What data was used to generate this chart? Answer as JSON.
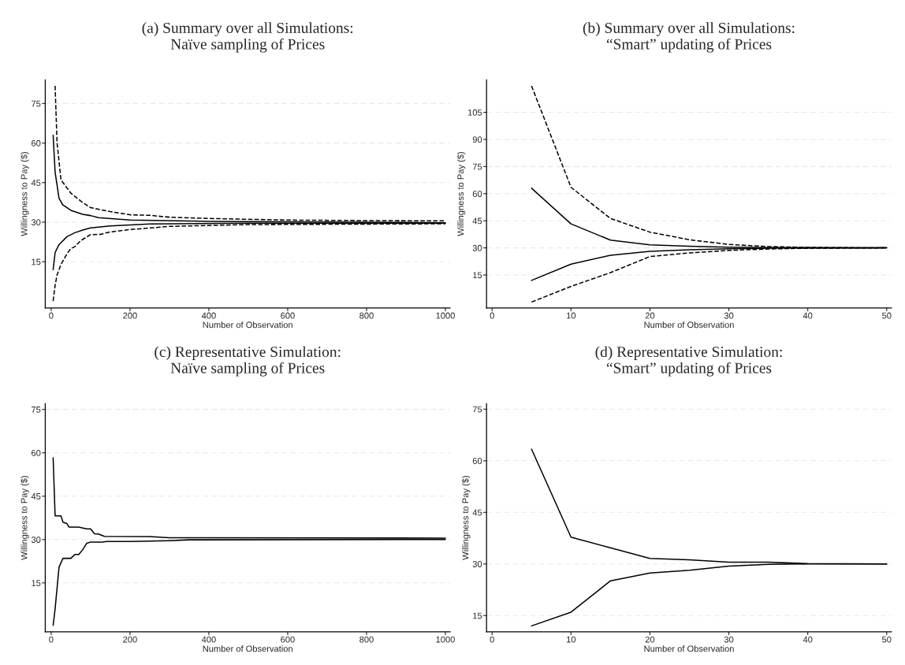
{
  "chart_data": [
    {
      "type": "line",
      "title": "(a) Summary over all Simulations:\nNaïve sampling of Prices",
      "xlabel": "Number of Observation",
      "ylabel": "Willingness to Pay ($)",
      "xlim": [
        -15,
        1012
      ],
      "xticks": [
        0,
        200,
        400,
        600,
        800,
        1000
      ],
      "ylim": [
        -2.5,
        84
      ],
      "yticks": [
        15,
        30,
        45,
        60,
        75
      ],
      "grid": "y",
      "series": [
        {
          "color": "#000000",
          "line_style": "dashed",
          "x": [
            10,
            15,
            25,
            50,
            75,
            100,
            150,
            200,
            250,
            300,
            400,
            600,
            800,
            1000
          ],
          "values": [
            81.7,
            60,
            46,
            41,
            38,
            35.5,
            34,
            32.8,
            32.6,
            31.9,
            31.4,
            30.8,
            30.6,
            30.5
          ]
        },
        {
          "color": "#000000",
          "line_style": "solid",
          "x": [
            5,
            10,
            20,
            30,
            50,
            80,
            100,
            120,
            200,
            400,
            1000
          ],
          "values": [
            63,
            49,
            39,
            36.5,
            34.5,
            33,
            32.5,
            31.7,
            30.8,
            30.3,
            29.8
          ]
        },
        {
          "color": "#000000",
          "line_style": "solid",
          "x": [
            5,
            10,
            20,
            40,
            60,
            80,
            100,
            150,
            250,
            500,
            1000
          ],
          "values": [
            12,
            18.5,
            21.5,
            24.5,
            26,
            27,
            27.8,
            28.6,
            29.3,
            29.6,
            29.6
          ]
        },
        {
          "color": "#000000",
          "line_style": "dashed",
          "x": [
            5,
            10,
            15,
            25,
            40,
            50,
            60,
            75,
            100,
            125,
            150,
            200,
            300,
            500,
            1000
          ],
          "values": [
            0.1,
            6,
            10,
            14,
            18,
            20,
            20.7,
            23,
            25.3,
            25.4,
            26.3,
            27.2,
            28.4,
            29.1,
            29.4
          ]
        }
      ]
    },
    {
      "type": "line",
      "title": "(b) Summary over all Simulations:\n“Smart” updating of Prices",
      "xlabel": "Number of Observation",
      "ylabel": "Willingness to Pay ($)",
      "xlim": [
        -0.7,
        50.6
      ],
      "xticks": [
        0,
        10,
        20,
        30,
        40,
        50
      ],
      "ylim": [
        -3.2,
        123
      ],
      "yticks": [
        15,
        30,
        45,
        60,
        75,
        90,
        105
      ],
      "grid": "y",
      "series": [
        {
          "color": "#000000",
          "line_style": "dashed",
          "x": [
            5,
            10,
            15,
            20,
            25,
            30,
            35,
            40,
            45,
            50
          ],
          "values": [
            119.6,
            63.5,
            46.3,
            38.7,
            34.5,
            31.9,
            30.7,
            30.3,
            30.1,
            30
          ]
        },
        {
          "color": "#000000",
          "line_style": "solid",
          "x": [
            5,
            10,
            15,
            20,
            25,
            30,
            35,
            40,
            50
          ],
          "values": [
            63,
            43.3,
            34.3,
            31.7,
            30.9,
            30.4,
            30.2,
            30.1,
            30
          ]
        },
        {
          "color": "#000000",
          "line_style": "solid",
          "x": [
            5,
            10,
            15,
            20,
            25,
            30,
            35,
            40,
            50
          ],
          "values": [
            12,
            21,
            25.9,
            28.1,
            29,
            29.5,
            29.8,
            29.9,
            30
          ]
        },
        {
          "color": "#000000",
          "line_style": "dashed",
          "x": [
            5,
            10,
            15,
            20,
            25,
            30,
            35,
            40,
            50
          ],
          "values": [
            0,
            8.7,
            16.3,
            25.2,
            27.2,
            28.6,
            29.4,
            29.8,
            30
          ]
        }
      ]
    },
    {
      "type": "line",
      "title": "(c) Representative Simulation:\nNaïve sampling of Prices",
      "xlabel": "Number of Observation",
      "ylabel": "Willingness to Pay ($)",
      "xlim": [
        -15,
        1012
      ],
      "xticks": [
        0,
        200,
        400,
        600,
        800,
        1000
      ],
      "ylim": [
        -1.9,
        77
      ],
      "yticks": [
        15,
        30,
        45,
        60,
        75
      ],
      "grid": "y",
      "series": [
        {
          "color": "#000000",
          "line_style": "solid",
          "x": [
            5,
            10,
            25,
            30,
            40,
            45,
            70,
            90,
            100,
            110,
            120,
            135,
            250,
            300,
            1000
          ],
          "values": [
            58.3,
            38.2,
            38.2,
            36,
            35.5,
            34.3,
            34.3,
            33.7,
            33.7,
            32,
            31.9,
            31.1,
            31,
            30.6,
            30.5
          ]
        },
        {
          "color": "#000000",
          "line_style": "solid",
          "x": [
            5,
            10,
            20,
            30,
            50,
            60,
            70,
            80,
            90,
            100,
            130,
            140,
            200,
            300,
            350,
            1000
          ],
          "values": [
            0.3,
            6,
            20.5,
            23.5,
            23.5,
            24.8,
            24.8,
            26.5,
            28.7,
            29.1,
            29.1,
            29.3,
            29.3,
            29.6,
            29.9,
            30
          ]
        }
      ]
    },
    {
      "type": "line",
      "title": "(d) Representative Simulation:\n“Smart” updating of Prices",
      "xlabel": "Number of Observation",
      "ylabel": "Willingness to Pay ($)",
      "xlim": [
        -0.7,
        50.6
      ],
      "xticks": [
        0,
        10,
        20,
        30,
        40,
        50
      ],
      "ylim": [
        10.3,
        76.6
      ],
      "yticks": [
        15,
        30,
        45,
        60,
        75
      ],
      "grid": "y",
      "series": [
        {
          "color": "#000000",
          "line_style": "solid",
          "x": [
            5,
            10,
            15,
            20,
            25,
            30,
            35,
            40,
            50
          ],
          "values": [
            63.4,
            37.8,
            34.7,
            31.6,
            31.2,
            30.5,
            30.5,
            30.1,
            30
          ]
        },
        {
          "color": "#000000",
          "line_style": "solid",
          "x": [
            5,
            10,
            15,
            20,
            25,
            30,
            35,
            40,
            50
          ],
          "values": [
            12,
            16,
            25.1,
            27.4,
            28.2,
            29.4,
            29.9,
            30,
            30
          ]
        }
      ]
    }
  ]
}
